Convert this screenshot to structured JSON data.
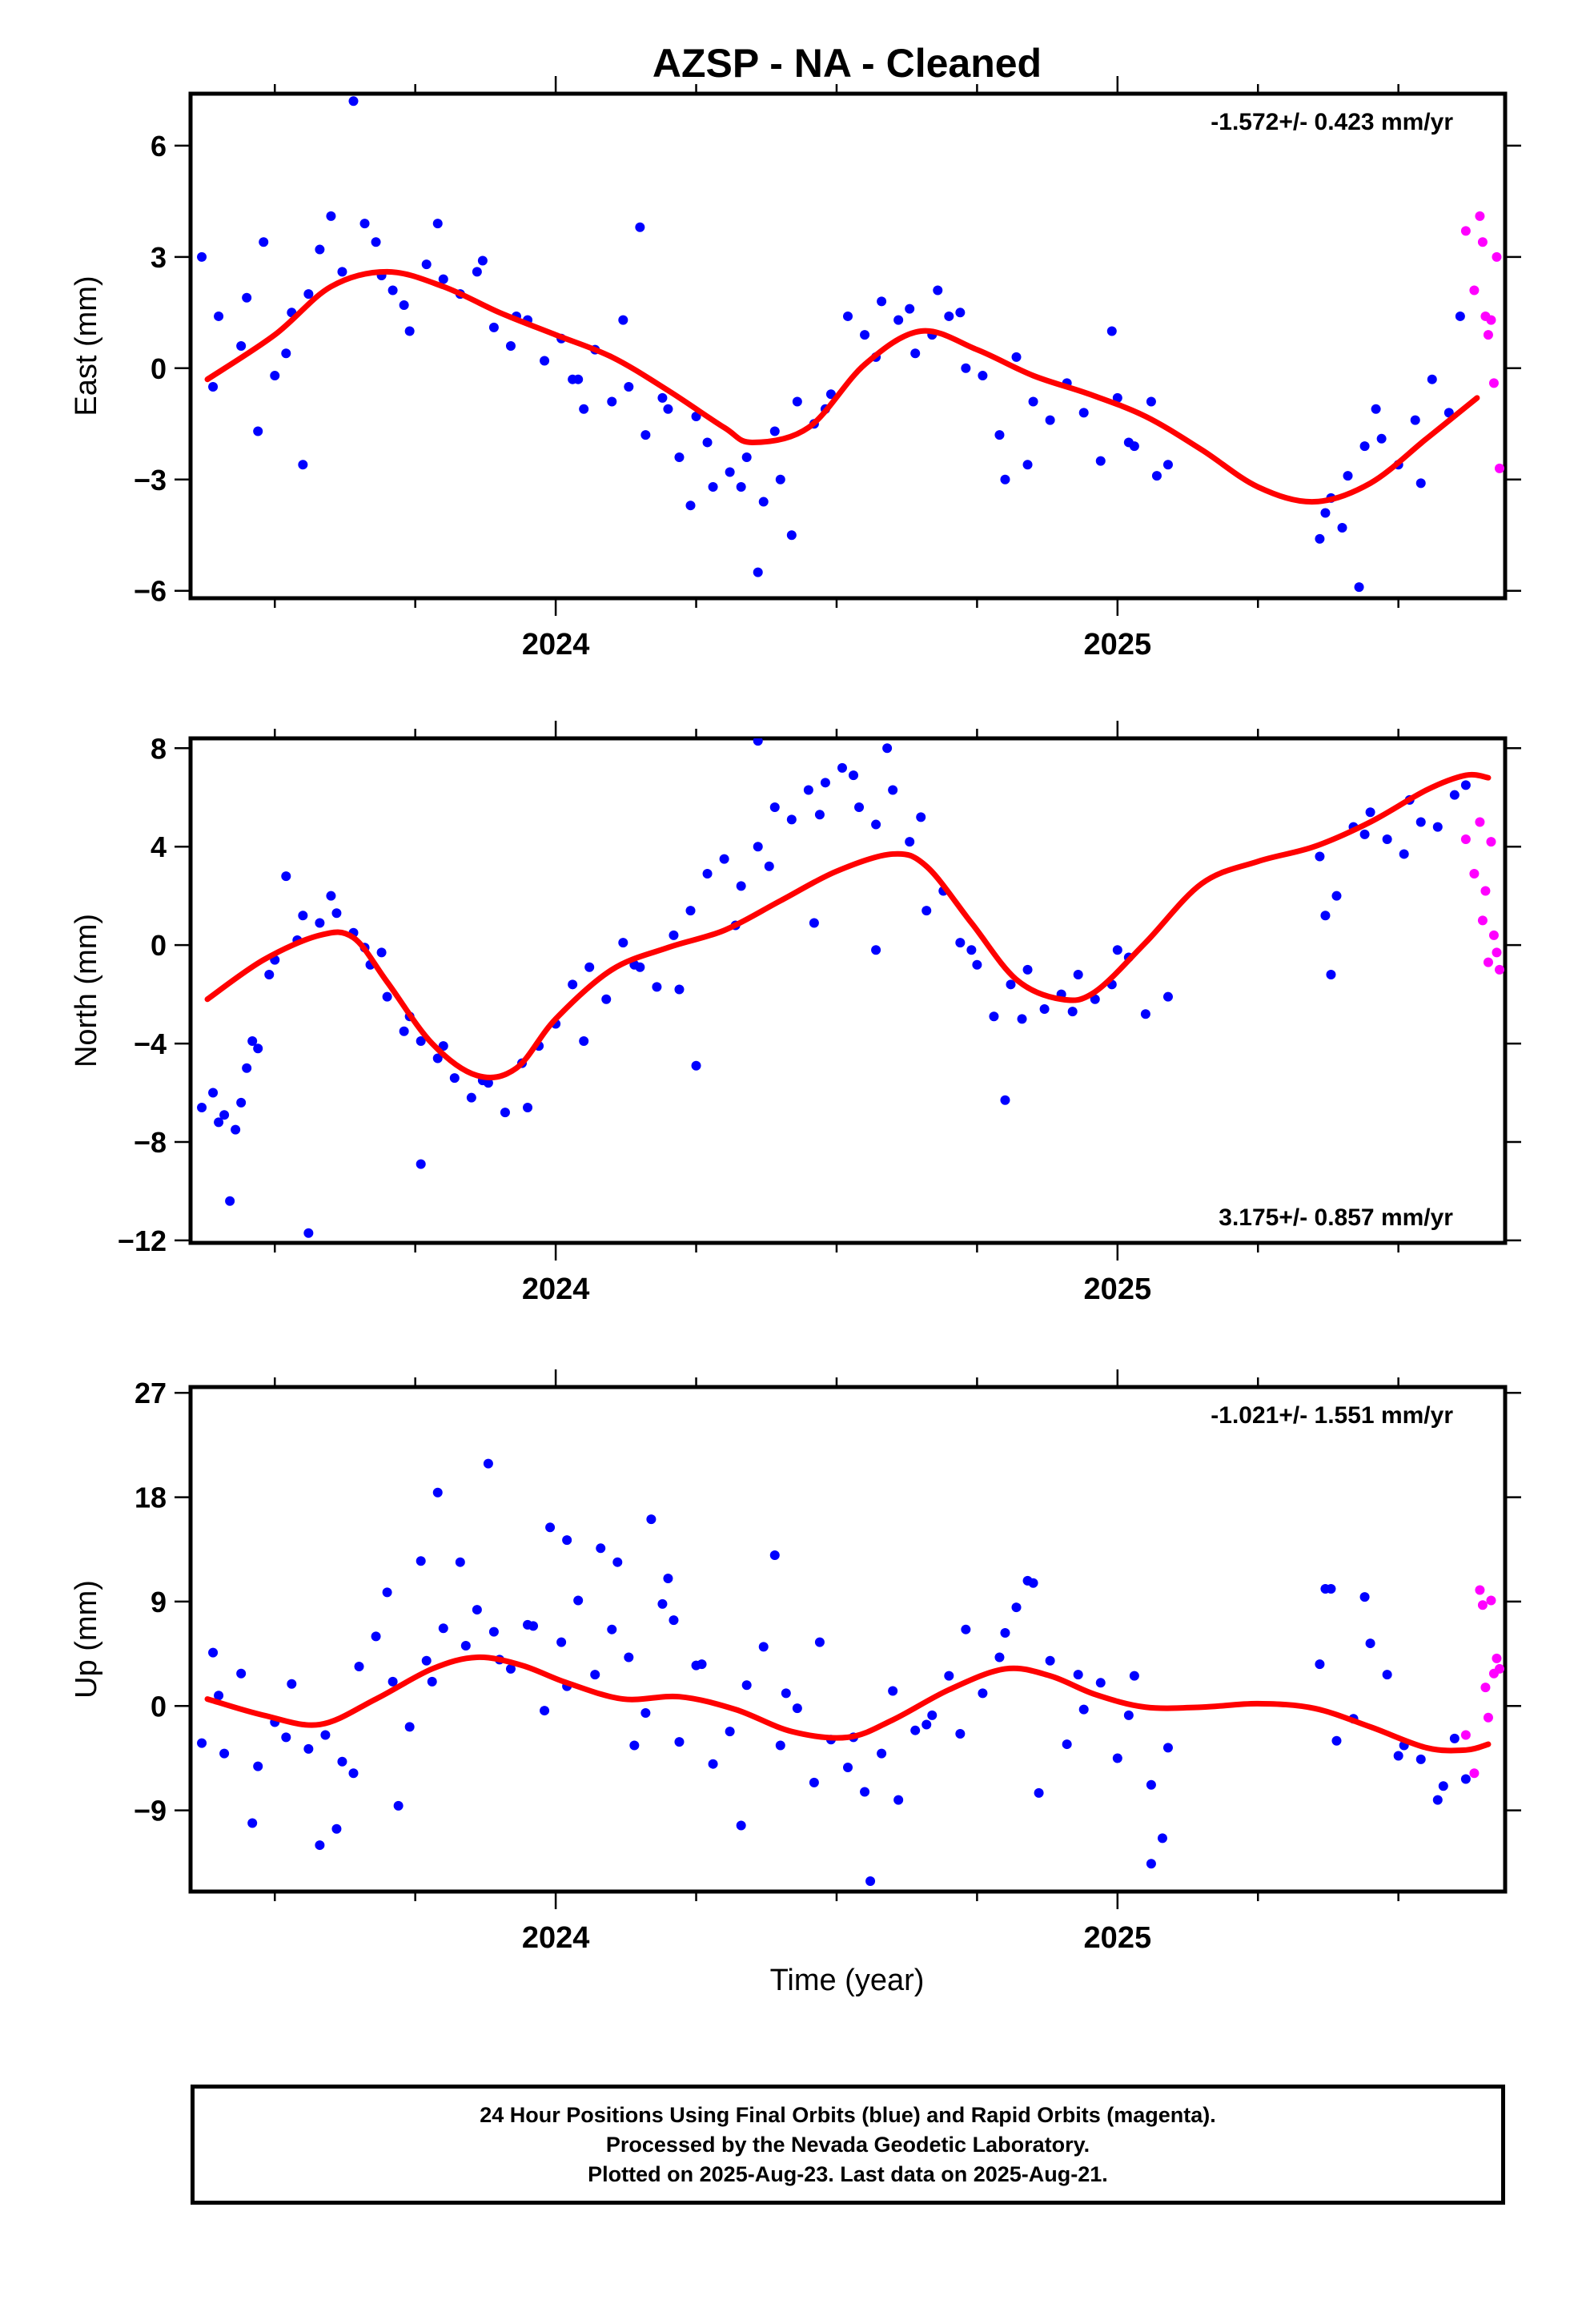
{
  "title": "AZSP  - NA - Cleaned",
  "xlabel": "Time (year)",
  "footer": {
    "line1": "24 Hour Positions Using Final Orbits (blue) and Rapid Orbits (magenta).",
    "line2": "Processed by the Nevada Geodetic Laboratory.",
    "line3": "Plotted on 2025-Aug-23. Last data on 2025-Aug-21."
  },
  "colors": {
    "final": "#0000ff",
    "rapid": "#ff00ff",
    "model": "#ff0000",
    "axis": "#000000"
  },
  "chart_data": [
    {
      "type": "scatter",
      "ylabel": "East (mm)",
      "rate_label": "-1.572+/- 0.423 mm/yr",
      "rate_position": "top-right",
      "xlim": [
        2023.35,
        2025.69
      ],
      "ylim": [
        -6.2,
        7.4
      ],
      "yticks": [
        -6,
        -3,
        0,
        3,
        6
      ],
      "xticks": [
        2024,
        2025
      ],
      "model": {
        "x": [
          2023.38,
          2023.5,
          2023.6,
          2023.7,
          2023.8,
          2023.9,
          2024.0,
          2024.1,
          2024.2,
          2024.3,
          2024.35,
          2024.45,
          2024.55,
          2024.65,
          2024.75,
          2024.85,
          2024.95,
          2025.05,
          2025.15,
          2025.25,
          2025.35,
          2025.45,
          2025.55,
          2025.64
        ],
        "y": [
          -0.3,
          0.9,
          2.2,
          2.6,
          2.2,
          1.5,
          0.9,
          0.3,
          -0.6,
          -1.6,
          -2.0,
          -1.6,
          0.1,
          1.0,
          0.5,
          -0.2,
          -0.7,
          -1.3,
          -2.2,
          -3.2,
          -3.6,
          -3.1,
          -1.9,
          -0.8
        ]
      },
      "final": {
        "x": [
          2023.37,
          2023.4,
          2023.44,
          2023.47,
          2023.5,
          2023.53,
          2023.56,
          2023.58,
          2023.62,
          2023.66,
          2023.69,
          2023.71,
          2023.74,
          2023.77,
          2023.8,
          2023.83,
          2023.86,
          2023.89,
          2023.92,
          2023.95,
          2023.98,
          2024.01,
          2024.04,
          2024.07,
          2024.1,
          2024.13,
          2024.16,
          2024.19,
          2024.22,
          2024.25,
          2024.28,
          2024.31,
          2024.34,
          2024.37,
          2024.4,
          2024.43,
          2024.46,
          2024.49,
          2024.52,
          2024.55,
          2024.58,
          2024.61,
          2024.64,
          2024.67,
          2024.7,
          2024.73,
          2024.76,
          2024.79,
          2024.82,
          2024.85,
          2024.88,
          2024.91,
          2024.94,
          2024.97,
          2025.0,
          2025.03,
          2025.06,
          2025.09,
          2025.36,
          2025.38,
          2025.41,
          2025.44,
          2025.47,
          2025.5,
          2025.53,
          2025.56,
          2025.59,
          2025.61,
          2023.39,
          2023.45,
          2023.52,
          2023.6,
          2023.68,
          2023.73,
          2023.79,
          2023.87,
          2023.93,
          2024.03,
          2024.12,
          2024.2,
          2024.27,
          2024.33,
          2024.39,
          2024.48,
          2024.57,
          2024.63,
          2024.72,
          2024.84,
          2024.99,
          2025.07,
          2025.37,
          2025.46,
          2025.54,
          2023.48,
          2023.64,
          2024.15,
          2024.42,
          2024.68,
          2025.02,
          2025.43,
          2023.55,
          2024.05,
          2024.24,
          2024.36,
          2024.8,
          2025.4
        ],
        "y": [
          3.0,
          1.4,
          0.6,
          -1.7,
          -0.2,
          1.5,
          2.0,
          3.2,
          2.6,
          3.9,
          2.5,
          2.1,
          1.0,
          2.8,
          2.4,
          2.0,
          2.6,
          1.1,
          0.6,
          1.3,
          0.2,
          0.8,
          -0.3,
          0.5,
          -0.9,
          -0.5,
          -1.8,
          -0.8,
          -2.4,
          -1.3,
          -3.2,
          -2.8,
          -2.4,
          -3.6,
          -3.0,
          -0.9,
          -1.5,
          -0.7,
          1.4,
          0.9,
          1.8,
          1.3,
          0.4,
          0.9,
          1.4,
          0.0,
          -0.2,
          -1.8,
          0.3,
          -0.9,
          -1.4,
          -0.4,
          -1.2,
          -2.5,
          -0.8,
          -2.1,
          -0.9,
          -2.6,
          -4.6,
          -3.5,
          -2.9,
          -2.1,
          -1.9,
          -2.6,
          -1.4,
          -0.3,
          -1.2,
          1.4,
          -0.5,
          1.9,
          0.4,
          4.1,
          3.4,
          1.7,
          3.9,
          2.9,
          1.4,
          -0.3,
          1.3,
          -1.1,
          -2.0,
          -3.2,
          -1.7,
          -1.1,
          0.3,
          1.6,
          1.5,
          -2.6,
          1.0,
          -2.9,
          -3.9,
          -1.1,
          -3.1,
          3.4,
          7.2,
          3.8,
          -4.5,
          2.1,
          -2.0,
          -5.9,
          -2.6,
          -1.1,
          -3.7,
          -5.5,
          -3.0,
          -4.3
        ],
        "x2": []
      },
      "rapid": {
        "x": [
          2025.62,
          2025.635,
          2025.645,
          2025.65,
          2025.655,
          2025.66,
          2025.665,
          2025.67,
          2025.675,
          2025.68
        ],
        "y": [
          3.7,
          2.1,
          4.1,
          3.4,
          1.4,
          0.9,
          1.3,
          -0.4,
          3.0,
          -2.7
        ]
      }
    },
    {
      "type": "scatter",
      "ylabel": "North (mm)",
      "rate_label": "3.175+/- 0.857 mm/yr",
      "rate_position": "bottom-right",
      "xlim": [
        2023.35,
        2025.69
      ],
      "ylim": [
        -12.1,
        8.4
      ],
      "yticks": [
        -12,
        -8,
        -4,
        0,
        4,
        8
      ],
      "xticks": [
        2024,
        2025
      ],
      "model": {
        "x": [
          2023.38,
          2023.48,
          2023.58,
          2023.64,
          2023.7,
          2023.78,
          2023.86,
          2023.93,
          2024.0,
          2024.1,
          2024.2,
          2024.3,
          2024.4,
          2024.5,
          2024.6,
          2024.66,
          2024.74,
          2024.82,
          2024.9,
          2024.96,
          2025.05,
          2025.15,
          2025.25,
          2025.35,
          2025.45,
          2025.55,
          2025.62,
          2025.66
        ],
        "y": [
          -2.2,
          -0.6,
          0.4,
          0.3,
          -1.5,
          -4.0,
          -5.3,
          -5.0,
          -3.0,
          -1.0,
          -0.1,
          0.6,
          1.8,
          3.0,
          3.7,
          3.2,
          0.9,
          -1.4,
          -2.2,
          -1.9,
          0.1,
          2.5,
          3.4,
          4.0,
          5.0,
          6.3,
          6.9,
          6.8
        ]
      },
      "final": {
        "x": [
          2023.37,
          2023.39,
          2023.41,
          2023.43,
          2023.45,
          2023.47,
          2023.49,
          2023.52,
          2023.55,
          2023.58,
          2023.61,
          2023.64,
          2023.67,
          2023.7,
          2023.73,
          2023.76,
          2023.79,
          2023.82,
          2023.85,
          2023.88,
          2023.91,
          2023.94,
          2023.97,
          2024.0,
          2024.03,
          2024.06,
          2024.09,
          2024.12,
          2024.15,
          2024.18,
          2024.21,
          2024.24,
          2024.27,
          2024.3,
          2024.33,
          2024.36,
          2024.39,
          2024.42,
          2024.45,
          2024.48,
          2024.51,
          2024.54,
          2024.57,
          2024.6,
          2024.63,
          2024.66,
          2024.69,
          2024.72,
          2024.75,
          2024.78,
          2024.81,
          2024.84,
          2024.87,
          2024.9,
          2024.93,
          2024.96,
          2024.99,
          2025.02,
          2025.05,
          2025.09,
          2025.36,
          2025.39,
          2025.42,
          2025.45,
          2025.48,
          2025.51,
          2025.54,
          2025.57,
          2025.6,
          2025.62,
          2023.4,
          2023.44,
          2023.46,
          2023.5,
          2023.54,
          2023.6,
          2023.66,
          2023.74,
          2023.8,
          2023.87,
          2023.95,
          2024.05,
          2024.14,
          2024.22,
          2024.32,
          2024.38,
          2024.47,
          2024.53,
          2024.59,
          2024.65,
          2024.74,
          2024.83,
          2024.92,
          2025.0,
          2025.37,
          2025.44,
          2025.52,
          2023.69,
          2023.76,
          2024.25,
          2024.46,
          2024.8,
          2025.38,
          2023.42,
          2024.36,
          2023.56,
          2024.57
        ],
        "y": [
          -6.6,
          -6.0,
          -6.9,
          -7.5,
          -5.0,
          -4.2,
          -1.2,
          2.8,
          1.2,
          0.9,
          1.3,
          0.5,
          -0.8,
          -2.1,
          -3.5,
          -3.9,
          -4.6,
          -5.4,
          -6.2,
          -5.6,
          -6.8,
          -4.8,
          -4.1,
          -3.2,
          -1.6,
          -0.9,
          -2.2,
          0.1,
          -0.9,
          -1.7,
          0.4,
          1.4,
          2.9,
          3.5,
          2.4,
          4.0,
          5.6,
          5.1,
          6.3,
          6.6,
          7.2,
          5.6,
          4.9,
          6.3,
          4.2,
          1.4,
          2.2,
          0.1,
          -0.8,
          -2.9,
          -1.6,
          -1.0,
          -2.6,
          -2.0,
          -1.2,
          -2.2,
          -1.6,
          -0.5,
          -2.8,
          -2.1,
          3.6,
          2.0,
          4.8,
          5.4,
          4.3,
          3.7,
          5.0,
          4.8,
          6.1,
          6.5,
          -7.2,
          -6.4,
          -3.9,
          -0.6,
          0.2,
          2.0,
          -0.1,
          -2.9,
          -4.1,
          -5.5,
          -6.6,
          -3.9,
          -0.8,
          -1.8,
          0.8,
          3.2,
          5.3,
          6.9,
          8.0,
          5.2,
          -0.2,
          -3.0,
          -2.7,
          -0.2,
          1.2,
          4.5,
          5.9,
          -0.3,
          -8.9,
          -4.9,
          0.9,
          -6.3,
          -1.2,
          -10.4,
          8.3,
          -11.7,
          -0.2
        ],
        "x2": []
      },
      "rapid": {
        "x": [
          2025.62,
          2025.635,
          2025.645,
          2025.65,
          2025.655,
          2025.66,
          2025.665,
          2025.67,
          2025.675,
          2025.68
        ],
        "y": [
          4.3,
          2.9,
          5.0,
          1.0,
          2.2,
          -0.7,
          4.2,
          0.4,
          -0.3,
          -1.0
        ]
      }
    },
    {
      "type": "scatter",
      "ylabel": "Up (mm)",
      "rate_label": "-1.021+/- 1.551 mm/yr",
      "rate_position": "top-right",
      "xlim": [
        2023.35,
        2025.69
      ],
      "ylim": [
        -16,
        27.5
      ],
      "yticks": [
        -9,
        0,
        9,
        18,
        27
      ],
      "xticks": [
        2024,
        2025
      ],
      "model": {
        "x": [
          2023.38,
          2023.48,
          2023.58,
          2023.68,
          2023.78,
          2023.86,
          2023.94,
          2024.02,
          2024.12,
          2024.22,
          2024.32,
          2024.42,
          2024.52,
          2024.6,
          2024.7,
          2024.8,
          2024.88,
          2024.96,
          2025.05,
          2025.15,
          2025.25,
          2025.35,
          2025.45,
          2025.55,
          2025.62,
          2025.66
        ],
        "y": [
          0.6,
          -0.8,
          -1.6,
          0.6,
          3.2,
          4.2,
          3.5,
          2.0,
          0.6,
          0.8,
          -0.3,
          -2.2,
          -2.7,
          -1.2,
          1.4,
          3.2,
          2.6,
          1.0,
          -0.1,
          -0.1,
          0.2,
          -0.2,
          -1.8,
          -3.6,
          -3.8,
          -3.3
        ]
      },
      "final": {
        "x": [
          2023.37,
          2023.39,
          2023.41,
          2023.44,
          2023.47,
          2023.5,
          2023.53,
          2023.56,
          2023.59,
          2023.62,
          2023.65,
          2023.68,
          2023.71,
          2023.74,
          2023.77,
          2023.8,
          2023.83,
          2023.86,
          2023.89,
          2023.92,
          2023.95,
          2023.98,
          2024.01,
          2024.04,
          2024.07,
          2024.1,
          2024.13,
          2024.16,
          2024.19,
          2024.22,
          2024.25,
          2024.28,
          2024.31,
          2024.34,
          2024.37,
          2024.4,
          2024.43,
          2024.46,
          2024.49,
          2024.52,
          2024.55,
          2024.58,
          2024.61,
          2024.64,
          2024.67,
          2024.7,
          2024.73,
          2024.76,
          2024.79,
          2024.82,
          2024.85,
          2024.88,
          2024.91,
          2024.94,
          2024.97,
          2025.0,
          2025.03,
          2025.06,
          2025.09,
          2025.36,
          2025.39,
          2025.42,
          2025.45,
          2025.48,
          2025.51,
          2025.54,
          2025.57,
          2025.6,
          2025.62,
          2023.4,
          2023.46,
          2023.52,
          2023.58,
          2023.64,
          2023.72,
          2023.78,
          2023.84,
          2023.9,
          2023.96,
          2024.02,
          2024.08,
          2024.14,
          2024.2,
          2024.26,
          2024.33,
          2024.41,
          2024.47,
          2024.53,
          2024.6,
          2024.66,
          2024.72,
          2024.8,
          2024.86,
          2024.93,
          2025.02,
          2025.08,
          2025.38,
          2025.44,
          2025.5,
          2025.58,
          2023.7,
          2023.79,
          2023.88,
          2023.99,
          2024.11,
          2024.17,
          2024.39,
          2024.56,
          2024.84,
          2025.06,
          2025.37,
          2023.76,
          2023.61,
          2024.02,
          2024.21
        ],
        "y": [
          -3.2,
          4.6,
          -4.1,
          2.8,
          -5.2,
          -1.4,
          1.9,
          -3.7,
          -2.5,
          -4.8,
          3.4,
          6.0,
          2.1,
          -1.8,
          3.9,
          6.7,
          12.4,
          8.3,
          6.4,
          3.2,
          7.0,
          -0.4,
          5.5,
          9.1,
          2.7,
          6.6,
          4.2,
          -0.6,
          8.8,
          -3.1,
          3.5,
          -5.0,
          -2.2,
          1.8,
          5.1,
          -3.4,
          -0.2,
          -6.6,
          -2.9,
          -5.3,
          -7.4,
          -4.1,
          -8.1,
          -2.1,
          -0.8,
          2.6,
          6.6,
          1.1,
          4.2,
          8.5,
          10.6,
          3.9,
          -3.3,
          -0.3,
          2.0,
          -4.5,
          2.6,
          -6.8,
          -3.6,
          3.6,
          -3.0,
          -1.1,
          5.4,
          2.7,
          -3.4,
          -4.6,
          -8.1,
          -2.8,
          -6.3,
          0.9,
          -10.1,
          -2.7,
          -12.0,
          -5.8,
          -8.6,
          2.1,
          5.2,
          4.0,
          6.9,
          1.7,
          13.6,
          -3.4,
          11.0,
          3.6,
          -10.3,
          1.1,
          5.5,
          -2.7,
          1.3,
          -1.6,
          -2.4,
          6.3,
          -7.5,
          2.7,
          -0.8,
          -11.4,
          10.1,
          9.4,
          -4.3,
          -6.9,
          9.8,
          18.4,
          20.9,
          15.4,
          12.4,
          16.1,
          13.0,
          -15.1,
          10.8,
          -13.6,
          10.1,
          12.5,
          -10.6,
          14.3,
          7.4
        ],
        "x2": []
      },
      "rapid": {
        "x": [
          2025.62,
          2025.635,
          2025.645,
          2025.65,
          2025.655,
          2025.66,
          2025.665,
          2025.67,
          2025.675,
          2025.68
        ],
        "y": [
          -2.5,
          -5.8,
          10.0,
          8.7,
          1.6,
          -1.0,
          9.1,
          2.8,
          4.1,
          3.2
        ]
      }
    }
  ]
}
